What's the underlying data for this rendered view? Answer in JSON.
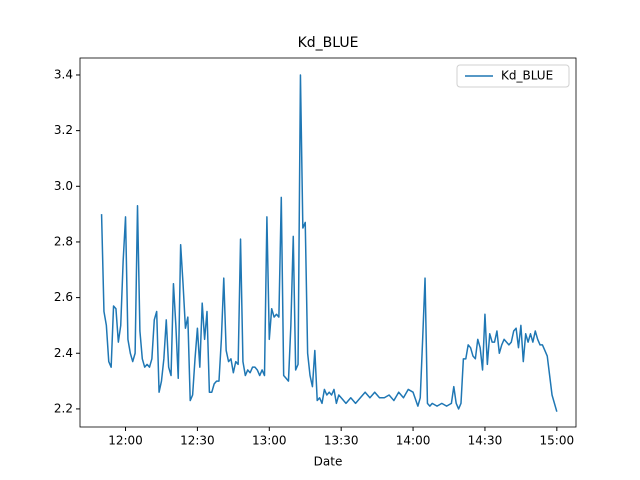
{
  "chart_data": {
    "type": "line",
    "title": "Kd_BLUE",
    "xlabel": "Date",
    "legend": "upper right",
    "grid": false,
    "x": [
      "11:50",
      "11:51",
      "11:52",
      "11:53",
      "11:54",
      "11:55",
      "11:56",
      "11:57",
      "11:58",
      "11:59",
      "12:00",
      "12:01",
      "12:02",
      "12:03",
      "12:04",
      "12:05",
      "12:06",
      "12:07",
      "12:08",
      "12:09",
      "12:10",
      "12:11",
      "12:12",
      "12:13",
      "12:14",
      "12:15",
      "12:16",
      "12:17",
      "12:18",
      "12:19",
      "12:20",
      "12:21",
      "12:22",
      "12:23",
      "12:24",
      "12:25",
      "12:26",
      "12:27",
      "12:28",
      "12:29",
      "12:30",
      "12:31",
      "12:32",
      "12:33",
      "12:34",
      "12:35",
      "12:36",
      "12:37",
      "12:38",
      "12:39",
      "12:40",
      "12:41",
      "12:42",
      "12:43",
      "12:44",
      "12:45",
      "12:46",
      "12:47",
      "12:48",
      "12:49",
      "12:50",
      "12:51",
      "12:52",
      "12:53",
      "12:54",
      "12:55",
      "12:56",
      "12:57",
      "12:58",
      "12:59",
      "13:00",
      "13:01",
      "13:02",
      "13:03",
      "13:04",
      "13:05",
      "13:06",
      "13:07",
      "13:08",
      "13:09",
      "13:10",
      "13:11",
      "13:12",
      "13:13",
      "13:14",
      "13:15",
      "13:16",
      "13:17",
      "13:18",
      "13:19",
      "13:20",
      "13:21",
      "13:22",
      "13:23",
      "13:24",
      "13:25",
      "13:26",
      "13:27",
      "13:28",
      "13:29",
      "13:30",
      "13:32",
      "13:34",
      "13:36",
      "13:38",
      "13:40",
      "13:42",
      "13:44",
      "13:46",
      "13:48",
      "13:50",
      "13:52",
      "13:54",
      "13:56",
      "13:58",
      "14:00",
      "14:02",
      "14:03",
      "14:04",
      "14:05",
      "14:06",
      "14:07",
      "14:08",
      "14:10",
      "14:12",
      "14:14",
      "14:16",
      "14:17",
      "14:18",
      "14:19",
      "14:20",
      "14:21",
      "14:22",
      "14:23",
      "14:24",
      "14:25",
      "14:26",
      "14:27",
      "14:28",
      "14:29",
      "14:30",
      "14:31",
      "14:32",
      "14:33",
      "14:34",
      "14:35",
      "14:36",
      "14:37",
      "14:38",
      "14:39",
      "14:40",
      "14:41",
      "14:42",
      "14:43",
      "14:44",
      "14:45",
      "14:46",
      "14:47",
      "14:48",
      "14:49",
      "14:50",
      "14:51",
      "14:52",
      "14:53",
      "14:54",
      "14:55",
      "14:56",
      "14:57",
      "14:58",
      "15:00"
    ],
    "series": [
      {
        "name": "Kd_BLUE",
        "color": "#1f77b4",
        "values": [
          2.9,
          2.55,
          2.5,
          2.37,
          2.35,
          2.57,
          2.56,
          2.44,
          2.5,
          2.73,
          2.89,
          2.45,
          2.4,
          2.37,
          2.4,
          2.93,
          2.48,
          2.38,
          2.35,
          2.36,
          2.35,
          2.38,
          2.52,
          2.55,
          2.26,
          2.3,
          2.38,
          2.52,
          2.35,
          2.32,
          2.65,
          2.5,
          2.31,
          2.79,
          2.65,
          2.49,
          2.53,
          2.23,
          2.25,
          2.38,
          2.49,
          2.35,
          2.58,
          2.45,
          2.55,
          2.26,
          2.26,
          2.29,
          2.3,
          2.3,
          2.45,
          2.67,
          2.41,
          2.37,
          2.38,
          2.33,
          2.37,
          2.36,
          2.81,
          2.37,
          2.32,
          2.34,
          2.33,
          2.35,
          2.35,
          2.34,
          2.32,
          2.34,
          2.32,
          2.89,
          2.45,
          2.56,
          2.53,
          2.54,
          2.53,
          2.96,
          2.32,
          2.31,
          2.3,
          2.5,
          2.82,
          2.34,
          2.36,
          3.4,
          2.85,
          2.87,
          2.4,
          2.32,
          2.28,
          2.41,
          2.23,
          2.24,
          2.22,
          2.27,
          2.25,
          2.26,
          2.25,
          2.27,
          2.22,
          2.25,
          2.24,
          2.22,
          2.24,
          2.22,
          2.24,
          2.26,
          2.24,
          2.26,
          2.24,
          2.24,
          2.25,
          2.23,
          2.26,
          2.24,
          2.27,
          2.26,
          2.21,
          2.24,
          2.45,
          2.67,
          2.22,
          2.21,
          2.22,
          2.21,
          2.22,
          2.21,
          2.22,
          2.28,
          2.22,
          2.2,
          2.22,
          2.38,
          2.38,
          2.43,
          2.42,
          2.39,
          2.38,
          2.45,
          2.42,
          2.34,
          2.54,
          2.36,
          2.47,
          2.44,
          2.44,
          2.48,
          2.4,
          2.43,
          2.45,
          2.44,
          2.43,
          2.44,
          2.48,
          2.49,
          2.42,
          2.5,
          2.37,
          2.47,
          2.44,
          2.47,
          2.44,
          2.48,
          2.45,
          2.43,
          2.43,
          2.41,
          2.39,
          2.32,
          2.25,
          2.19
        ]
      }
    ],
    "xlim": [
      "11:41",
      "15:08"
    ],
    "xticks": [
      "12:00",
      "12:30",
      "13:00",
      "13:30",
      "14:00",
      "14:30",
      "15:00"
    ],
    "ylim": [
      2.135,
      3.461
    ],
    "yticks": [
      2.2,
      2.4,
      2.6,
      2.8,
      {
        "value": 3,
        "label": "3.0"
      },
      3.2,
      3.4
    ]
  }
}
